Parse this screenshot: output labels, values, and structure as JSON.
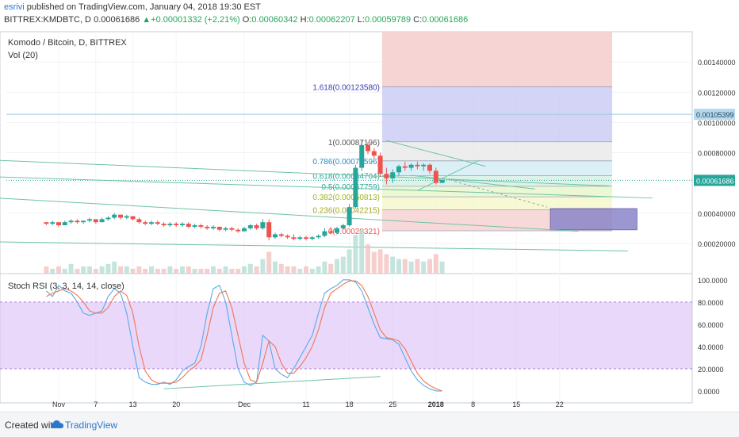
{
  "header": {
    "author": "esrivi",
    "published": "published on TradingView.com, January 04, 2018 19:30 EST",
    "symbol": "BITTREX:KMDBTC, D",
    "last": "0.00061686",
    "change_arrow": "▲",
    "change": "+0.00001332 (+2.21%)",
    "o_label": "O:",
    "o": "0.00060342",
    "h_label": "H:",
    "h": "0.00062207",
    "l_label": "L:",
    "l": "0.00059789",
    "c_label": "C:",
    "c": "0.00061686"
  },
  "colors": {
    "up": "#26a69a",
    "down": "#ef5350",
    "rsi_k": "#5aa9e6",
    "rsi_d": "#f0764f",
    "trend": "#6fc3a5",
    "band": "#d9b8f8",
    "hline": "#9cc7e0"
  },
  "chart_data": [
    {
      "type": "candlestick",
      "title": "Komodo / Bitcoin, D, BITTREX",
      "indicator_label": "Vol (20)",
      "ylim": [
        0.0,
        0.0016
      ],
      "y_ticks": [
        "0.00140000",
        "0.00120000",
        "0.00100000",
        "0.00080000",
        "0.00060000",
        "0.00040000",
        "0.00020000"
      ],
      "y_tick_values": [
        0.0014,
        0.0012,
        0.001,
        0.0008,
        0.0006,
        0.0004,
        0.0002
      ],
      "last_price_label": "0.00061686",
      "last_price": 0.00061686,
      "hline_label": "0.00105399",
      "hline_price": 0.00105399,
      "x_ticks": [
        "Nov",
        "7",
        "13",
        "20",
        "Dec",
        "11",
        "18",
        "25",
        "2018",
        "8",
        "15",
        "22"
      ],
      "x_tick_days": [
        0,
        6,
        12,
        19,
        30,
        40,
        47,
        54,
        61,
        67,
        74,
        81
      ],
      "candles_start_day": -2,
      "candles": [
        [
          0.00034,
          0.00034,
          0.00032,
          0.00033
        ],
        [
          0.00033,
          0.00035,
          0.00032,
          0.00034
        ],
        [
          0.00034,
          0.00034,
          0.00031,
          0.00032
        ],
        [
          0.00032,
          0.00035,
          0.00032,
          0.00034
        ],
        [
          0.00034,
          0.00036,
          0.00033,
          0.00035
        ],
        [
          0.00035,
          0.00036,
          0.00033,
          0.00034
        ],
        [
          0.00034,
          0.00035,
          0.00033,
          0.00035
        ],
        [
          0.00035,
          0.00037,
          0.00034,
          0.00036
        ],
        [
          0.00036,
          0.00036,
          0.00033,
          0.00034
        ],
        [
          0.00034,
          0.00037,
          0.00034,
          0.00036
        ],
        [
          0.00036,
          0.00038,
          0.00035,
          0.00037
        ],
        [
          0.00037,
          0.0004,
          0.00036,
          0.00039
        ],
        [
          0.00039,
          0.00039,
          0.00036,
          0.00037
        ],
        [
          0.00037,
          0.00039,
          0.00036,
          0.00038
        ],
        [
          0.00038,
          0.00038,
          0.00035,
          0.00036
        ],
        [
          0.00036,
          0.00037,
          0.00033,
          0.00034
        ],
        [
          0.00034,
          0.00035,
          0.00032,
          0.00033
        ],
        [
          0.00033,
          0.00035,
          0.00032,
          0.00034
        ],
        [
          0.00034,
          0.00035,
          0.00032,
          0.00033
        ],
        [
          0.00033,
          0.00034,
          0.00031,
          0.00032
        ],
        [
          0.00032,
          0.00034,
          0.00031,
          0.00033
        ],
        [
          0.00033,
          0.00034,
          0.00031,
          0.00032
        ],
        [
          0.00032,
          0.00034,
          0.00031,
          0.00033
        ],
        [
          0.00033,
          0.00034,
          0.0003,
          0.00031
        ],
        [
          0.00031,
          0.00033,
          0.0003,
          0.00032
        ],
        [
          0.00032,
          0.00033,
          0.0003,
          0.00031
        ],
        [
          0.00031,
          0.00032,
          0.00029,
          0.0003
        ],
        [
          0.0003,
          0.00032,
          0.00029,
          0.00031
        ],
        [
          0.00031,
          0.00031,
          0.00028,
          0.00029
        ],
        [
          0.00029,
          0.00031,
          0.00028,
          0.0003
        ],
        [
          0.0003,
          0.00031,
          0.00028,
          0.00029
        ],
        [
          0.00029,
          0.0003,
          0.00027,
          0.00028
        ],
        [
          0.00028,
          0.00031,
          0.00028,
          0.0003
        ],
        [
          0.0003,
          0.00033,
          0.00029,
          0.00032
        ],
        [
          0.00032,
          0.00033,
          0.00029,
          0.0003
        ],
        [
          0.0003,
          0.00036,
          0.00029,
          0.00034
        ],
        [
          0.00034,
          0.00036,
          0.00022,
          0.00024
        ],
        [
          0.00024,
          0.00027,
          0.00023,
          0.00026
        ],
        [
          0.00026,
          0.00027,
          0.00024,
          0.00025
        ],
        [
          0.00025,
          0.00026,
          0.00023,
          0.00024
        ],
        [
          0.00024,
          0.00026,
          0.00022,
          0.00023
        ],
        [
          0.00023,
          0.00025,
          0.00022,
          0.00024
        ],
        [
          0.00024,
          0.00025,
          0.00022,
          0.00023
        ],
        [
          0.00023,
          0.00025,
          0.00022,
          0.00024
        ],
        [
          0.00024,
          0.00026,
          0.00023,
          0.00025
        ],
        [
          0.00025,
          0.0003,
          0.00024,
          0.00028
        ],
        [
          0.00028,
          0.00031,
          0.00026,
          0.00027
        ],
        [
          0.00027,
          0.00031,
          0.00026,
          0.0003
        ],
        [
          0.0003,
          0.00033,
          0.00029,
          0.00032
        ],
        [
          0.00032,
          0.00046,
          0.00031,
          0.00044
        ],
        [
          0.00044,
          0.00072,
          0.00043,
          0.0007
        ],
        [
          0.0007,
          0.00088,
          0.00068,
          0.00085
        ],
        [
          0.00085,
          0.00087,
          0.00079,
          0.00081
        ],
        [
          0.00081,
          0.00083,
          0.00076,
          0.00078
        ],
        [
          0.00078,
          0.0008,
          0.00064,
          0.00066
        ],
        [
          0.00066,
          0.0007,
          0.00059,
          0.00063
        ],
        [
          0.00063,
          0.00069,
          0.0006,
          0.00067
        ],
        [
          0.00067,
          0.00072,
          0.00065,
          0.00071
        ],
        [
          0.00071,
          0.00074,
          0.00068,
          0.0007
        ],
        [
          0.0007,
          0.00073,
          0.00068,
          0.00072
        ],
        [
          0.00072,
          0.00074,
          0.00069,
          0.00071
        ],
        [
          0.00071,
          0.00073,
          0.00068,
          0.00072
        ],
        [
          0.00072,
          0.00073,
          0.00066,
          0.00068
        ],
        [
          0.00068,
          0.0007,
          0.00059,
          0.0006
        ],
        [
          0.0006,
          0.00062,
          0.0006,
          0.00062
        ]
      ],
      "volumes": [
        3,
        2,
        3,
        2,
        4,
        2,
        3,
        3,
        2,
        3,
        4,
        5,
        3,
        3,
        2,
        3,
        2,
        3,
        2,
        2,
        3,
        2,
        3,
        3,
        2,
        2,
        2,
        3,
        2,
        3,
        2,
        2,
        3,
        4,
        3,
        6,
        9,
        5,
        4,
        3,
        3,
        2,
        3,
        2,
        3,
        5,
        4,
        6,
        7,
        10,
        16,
        18,
        12,
        9,
        10,
        8,
        7,
        6,
        6,
        5,
        6,
        5,
        6,
        8,
        5
      ],
      "fibonacci": [
        {
          "label": "1.618(0.00123580)",
          "price": 0.0012358
        },
        {
          "label": "1(0.00087196)",
          "price": 0.00087196
        },
        {
          "label": "0.786(0.00074596)",
          "price": 0.00074596
        },
        {
          "label": "0.618(0.00064704)",
          "price": 0.00064704
        },
        {
          "label": "0.5(0.00057759)",
          "price": 0.00057759
        },
        {
          "label": "0.382(0.00050813)",
          "price": 0.00050813
        },
        {
          "label": "0.236(0.00042215)",
          "price": 0.00042215
        },
        {
          "label": "0(0.00028321)",
          "price": 0.00028321
        }
      ]
    },
    {
      "type": "line",
      "title": "Stoch RSI (3, 3, 14, 14, close)",
      "ylim": [
        -5,
        102
      ],
      "y_ticks": [
        "100.0000",
        "80.0000",
        "60.0000",
        "40.0000",
        "20.0000",
        "0.0000"
      ],
      "y_tick_values": [
        100,
        80,
        60,
        40,
        20,
        0
      ],
      "band": [
        20,
        80
      ],
      "series": [
        {
          "name": "K",
          "values": [
            90,
            85,
            95,
            90,
            88,
            80,
            70,
            68,
            70,
            72,
            85,
            92,
            88,
            70,
            40,
            12,
            8,
            6,
            6,
            8,
            6,
            10,
            18,
            22,
            25,
            40,
            70,
            92,
            95,
            80,
            50,
            20,
            8,
            5,
            8,
            50,
            45,
            20,
            15,
            12,
            20,
            30,
            40,
            50,
            70,
            88,
            92,
            95,
            100,
            100,
            98,
            90,
            75,
            60,
            48,
            47,
            46,
            42,
            30,
            18,
            10,
            5,
            2,
            0,
            0
          ]
        },
        {
          "name": "D",
          "values": [
            85,
            88,
            90,
            92,
            90,
            86,
            80,
            72,
            70,
            70,
            75,
            85,
            90,
            86,
            70,
            40,
            18,
            10,
            7,
            7,
            7,
            8,
            12,
            18,
            22,
            28,
            50,
            75,
            88,
            90,
            75,
            50,
            25,
            10,
            8,
            25,
            45,
            40,
            25,
            16,
            16,
            22,
            30,
            40,
            55,
            75,
            88,
            92,
            96,
            99,
            99,
            95,
            85,
            70,
            55,
            48,
            47,
            45,
            38,
            27,
            16,
            9,
            5,
            2,
            0
          ]
        }
      ]
    }
  ],
  "footer": {
    "created_label": "Created with",
    "brand": "TradingView"
  }
}
